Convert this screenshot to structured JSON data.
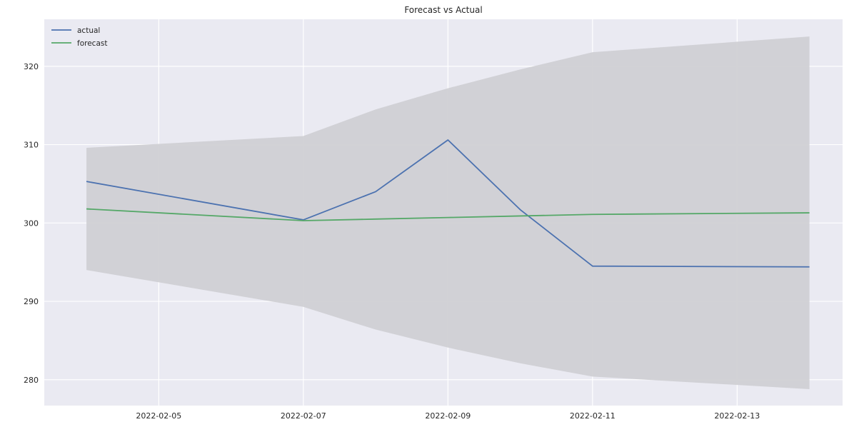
{
  "chart_data": {
    "type": "line",
    "title": "Forecast vs Actual",
    "xlabel": "",
    "ylabel": "",
    "x": [
      "2022-02-04",
      "2022-02-07",
      "2022-02-08",
      "2022-02-09",
      "2022-02-10",
      "2022-02-11",
      "2022-02-14"
    ],
    "x_ticks": [
      "2022-02-05",
      "2022-02-07",
      "2022-02-09",
      "2022-02-11",
      "2022-02-13"
    ],
    "y_ticks": [
      280,
      290,
      300,
      310,
      320
    ],
    "xlim": [
      "2022-02-03T10:00",
      "2022-02-14T11:00"
    ],
    "ylim": [
      276.7,
      326
    ],
    "grid": true,
    "legend_position": "top-left",
    "series": [
      {
        "name": "actual",
        "color": "#4c72b0",
        "values": [
          305.3,
          300.4,
          304.0,
          310.6,
          301.7,
          294.5,
          294.4
        ]
      },
      {
        "name": "forecast",
        "color": "#55a868",
        "values": [
          301.8,
          300.3,
          300.5,
          300.7,
          300.9,
          301.1,
          301.3
        ]
      }
    ],
    "interval": {
      "color": "#d0d0d4",
      "upper": [
        309.6,
        311.1,
        314.5,
        317.2,
        319.6,
        321.8,
        323.8
      ],
      "lower": [
        294.0,
        289.3,
        286.4,
        284.1,
        282.1,
        280.4,
        278.8
      ]
    }
  }
}
